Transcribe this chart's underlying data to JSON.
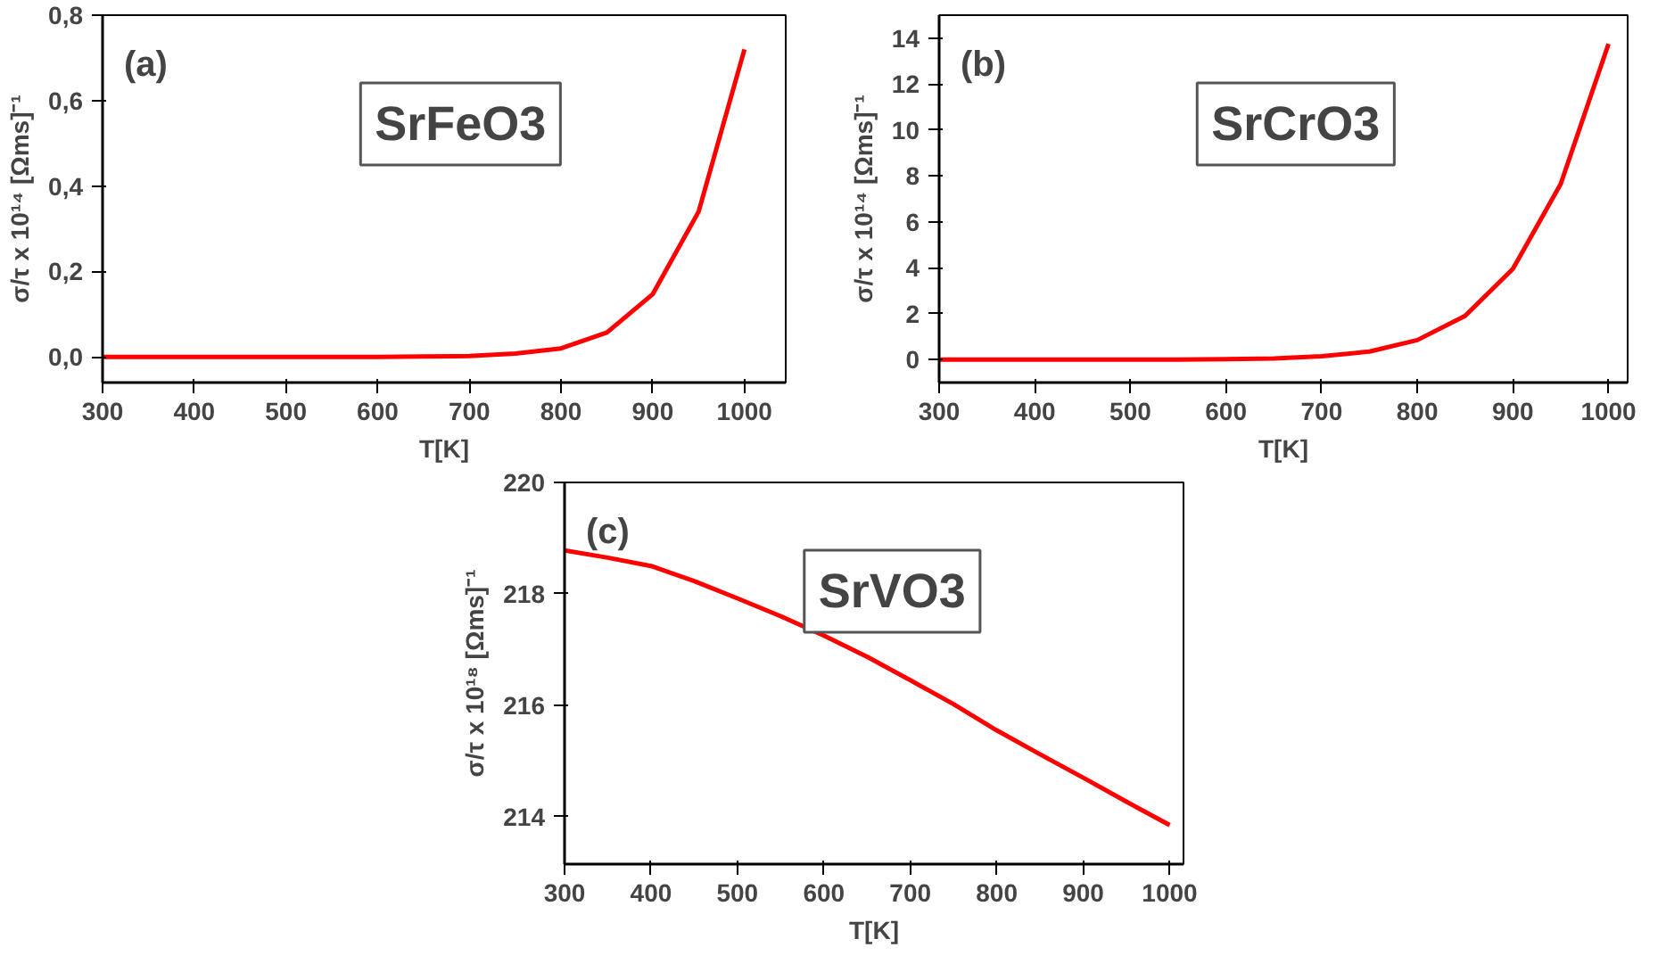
{
  "chart_data": [
    {
      "type": "line",
      "xlabel": "T[K]",
      "ylabel": "σ/τ x 10¹⁴ [Ωms]⁻¹",
      "annotations": [
        "(a)",
        "SrFeO3"
      ],
      "x": [
        300,
        350,
        400,
        450,
        500,
        550,
        600,
        650,
        700,
        750,
        800,
        850,
        900,
        950,
        1000
      ],
      "series": [
        {
          "color": "#ff0000",
          "values": [
            0,
            0,
            0,
            0,
            0,
            0,
            0,
            0.001,
            0.002,
            0.008,
            0.02,
            0.057,
            0.147,
            0.34,
            0.72
          ]
        }
      ],
      "xlim": [
        300,
        1045
      ],
      "ylim": [
        -0.06,
        0.8
      ],
      "xticks": [
        300,
        400,
        500,
        600,
        700,
        800,
        900,
        1000
      ],
      "yticks": [
        {
          "value": 0,
          "label": "0,0"
        },
        {
          "value": 0.2,
          "label": "0,2"
        },
        {
          "value": 0.4,
          "label": "0,4"
        },
        {
          "value": 0.6,
          "label": "0,6"
        },
        {
          "value": 0.8,
          "label": "0,8"
        }
      ],
      "grid": false,
      "marker": "none",
      "line_style": "solid"
    },
    {
      "type": "line",
      "xlabel": "T[K]",
      "ylabel": "σ/τ x 10¹⁴ [Ωms]⁻¹",
      "annotations": [
        "(b)",
        "SrCrO3"
      ],
      "x": [
        300,
        350,
        400,
        450,
        500,
        550,
        600,
        650,
        700,
        750,
        800,
        850,
        900,
        950,
        1000
      ],
      "series": [
        {
          "color": "#ff0000",
          "values": [
            0,
            0,
            0,
            0,
            0,
            0,
            0.02,
            0.05,
            0.15,
            0.35,
            0.85,
            1.9,
            3.95,
            7.65,
            13.75
          ]
        }
      ],
      "xlim": [
        300,
        1020
      ],
      "ylim": [
        -1,
        15
      ],
      "xticks": [
        300,
        400,
        500,
        600,
        700,
        800,
        900,
        1000
      ],
      "yticks": [
        0,
        2,
        4,
        6,
        8,
        10,
        12,
        14
      ],
      "grid": false,
      "marker": "none",
      "line_style": "solid"
    },
    {
      "type": "line",
      "xlabel": "T[K]",
      "ylabel": "σ/τ x 10¹⁸ [Ωms]⁻¹",
      "annotations": [
        "(c)",
        "SrVO3"
      ],
      "x": [
        300,
        350,
        400,
        450,
        500,
        550,
        600,
        650,
        700,
        750,
        800,
        850,
        900,
        950,
        1000
      ],
      "series": [
        {
          "color": "#ff0000",
          "values": [
            218.78,
            218.65,
            218.5,
            218.23,
            217.92,
            217.6,
            217.25,
            216.87,
            216.45,
            216.02,
            215.55,
            215.12,
            214.7,
            214.27,
            213.85
          ]
        }
      ],
      "xlim": [
        300,
        1016
      ],
      "ylim": [
        213.15,
        220
      ],
      "xticks": [
        300,
        400,
        500,
        600,
        700,
        800,
        900,
        1000
      ],
      "yticks": [
        214,
        216,
        218,
        220
      ],
      "grid": false,
      "marker": "none",
      "line_style": "solid"
    }
  ]
}
